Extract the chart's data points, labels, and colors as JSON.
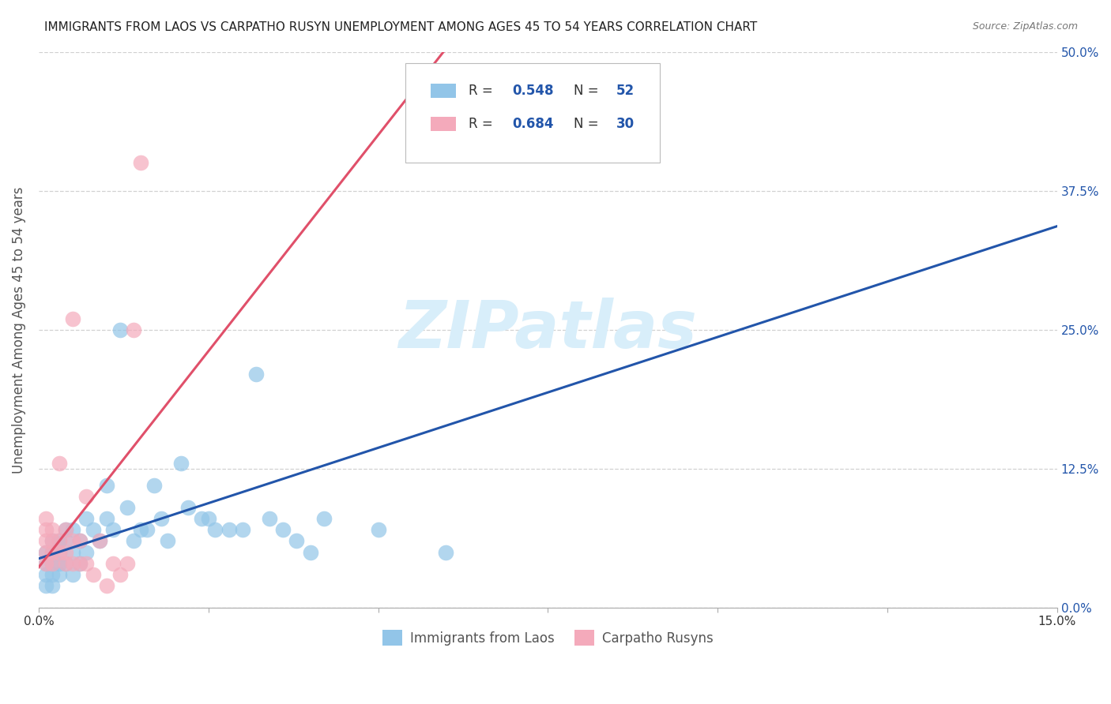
{
  "title": "IMMIGRANTS FROM LAOS VS CARPATHO RUSYN UNEMPLOYMENT AMONG AGES 45 TO 54 YEARS CORRELATION CHART",
  "source": "Source: ZipAtlas.com",
  "ylabel_label": "Unemployment Among Ages 45 to 54 years",
  "xlim": [
    0.0,
    0.15
  ],
  "ylim": [
    0.0,
    0.5
  ],
  "ytick_vals": [
    0.0,
    0.125,
    0.25,
    0.375,
    0.5
  ],
  "ytick_labels": [
    "0.0%",
    "12.5%",
    "25.0%",
    "37.5%",
    "50.0%"
  ],
  "xtick_vals": [
    0.0,
    0.025,
    0.05,
    0.075,
    0.1,
    0.125,
    0.15
  ],
  "xtick_labels_show": [
    "0.0%",
    "",
    "",
    "",
    "",
    "",
    "15.0%"
  ],
  "legend_blue_r": "0.548",
  "legend_blue_n": "52",
  "legend_pink_r": "0.684",
  "legend_pink_n": "30",
  "legend_label_blue": "Immigrants from Laos",
  "legend_label_pink": "Carpatho Rusyns",
  "blue_color": "#92C5E8",
  "pink_color": "#F4AABB",
  "line_blue_color": "#2255AA",
  "line_pink_color": "#E0506A",
  "watermark_text": "ZIPatlas",
  "watermark_color": "#D8EEFA",
  "blue_scatter_x": [
    0.001,
    0.001,
    0.001,
    0.001,
    0.002,
    0.002,
    0.002,
    0.002,
    0.002,
    0.003,
    0.003,
    0.003,
    0.003,
    0.004,
    0.004,
    0.004,
    0.005,
    0.005,
    0.005,
    0.006,
    0.006,
    0.007,
    0.007,
    0.008,
    0.009,
    0.01,
    0.01,
    0.011,
    0.012,
    0.013,
    0.014,
    0.015,
    0.016,
    0.017,
    0.018,
    0.019,
    0.021,
    0.022,
    0.024,
    0.025,
    0.026,
    0.028,
    0.03,
    0.032,
    0.034,
    0.036,
    0.038,
    0.04,
    0.042,
    0.05,
    0.06,
    0.065
  ],
  "blue_scatter_y": [
    0.02,
    0.03,
    0.04,
    0.05,
    0.02,
    0.03,
    0.04,
    0.05,
    0.06,
    0.03,
    0.04,
    0.05,
    0.06,
    0.04,
    0.06,
    0.07,
    0.03,
    0.05,
    0.07,
    0.04,
    0.06,
    0.05,
    0.08,
    0.07,
    0.06,
    0.08,
    0.11,
    0.07,
    0.25,
    0.09,
    0.06,
    0.07,
    0.07,
    0.11,
    0.08,
    0.06,
    0.13,
    0.09,
    0.08,
    0.08,
    0.07,
    0.07,
    0.07,
    0.21,
    0.08,
    0.07,
    0.06,
    0.05,
    0.08,
    0.07,
    0.05,
    0.43
  ],
  "pink_scatter_x": [
    0.001,
    0.001,
    0.001,
    0.001,
    0.001,
    0.002,
    0.002,
    0.002,
    0.002,
    0.003,
    0.003,
    0.003,
    0.004,
    0.004,
    0.004,
    0.005,
    0.005,
    0.005,
    0.006,
    0.006,
    0.007,
    0.007,
    0.008,
    0.009,
    0.01,
    0.011,
    0.012,
    0.013,
    0.014,
    0.015
  ],
  "pink_scatter_y": [
    0.04,
    0.05,
    0.06,
    0.07,
    0.08,
    0.04,
    0.05,
    0.06,
    0.07,
    0.05,
    0.06,
    0.13,
    0.04,
    0.05,
    0.07,
    0.04,
    0.06,
    0.26,
    0.04,
    0.06,
    0.04,
    0.1,
    0.03,
    0.06,
    0.02,
    0.04,
    0.03,
    0.04,
    0.25,
    0.4
  ]
}
